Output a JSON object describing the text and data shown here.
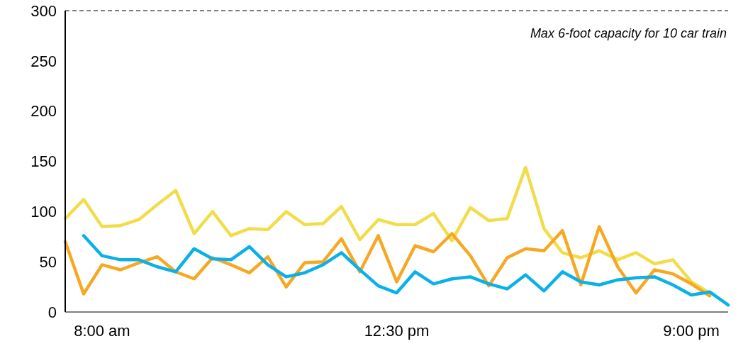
{
  "chart_data": {
    "type": "line",
    "categories": [
      null,
      null,
      "8:00 am",
      null,
      null,
      null,
      null,
      null,
      null,
      null,
      null,
      null,
      null,
      null,
      null,
      null,
      null,
      null,
      "12:30 pm",
      null,
      null,
      null,
      null,
      null,
      null,
      null,
      null,
      null,
      null,
      null,
      null,
      null,
      null,
      null,
      "9:00 pm",
      null,
      null
    ],
    "ylim": [
      0,
      300
    ],
    "yticks": [
      0,
      50,
      100,
      150,
      200,
      250,
      300
    ],
    "grid": false,
    "marker": "none",
    "line_style": "solid",
    "ref_lines": [
      {
        "axis": "y",
        "value": 300,
        "label": "Max 6-foot capacity for 10 car train",
        "line_style": "dashed",
        "color": "#000000"
      }
    ],
    "series": [
      {
        "color": "#f2dc4a",
        "values": [
          93,
          112,
          85,
          86,
          92,
          107,
          121,
          78,
          100,
          76,
          83,
          82,
          100,
          87,
          88,
          105,
          72,
          92,
          87,
          87,
          98,
          71,
          104,
          91,
          93,
          144,
          83,
          59,
          54,
          61,
          52,
          59,
          48,
          52,
          30,
          19,
          null
        ]
      },
      {
        "color": "#f7a823",
        "values": [
          70,
          18,
          47,
          42,
          49,
          55,
          40,
          33,
          54,
          47,
          39,
          55,
          25,
          49,
          50,
          73,
          40,
          76,
          30,
          66,
          60,
          78,
          56,
          26,
          54,
          63,
          61,
          81,
          27,
          85,
          45,
          19,
          42,
          38,
          28,
          16,
          null
        ]
      },
      {
        "color": "#0ab0e8",
        "values": [
          null,
          76,
          56,
          52,
          52,
          45,
          40,
          63,
          53,
          52,
          65,
          47,
          35,
          39,
          47,
          59,
          42,
          26,
          19,
          40,
          28,
          33,
          35,
          28,
          23,
          37,
          21,
          40,
          30,
          27,
          32,
          34,
          35,
          27,
          17,
          20,
          7
        ]
      }
    ]
  }
}
